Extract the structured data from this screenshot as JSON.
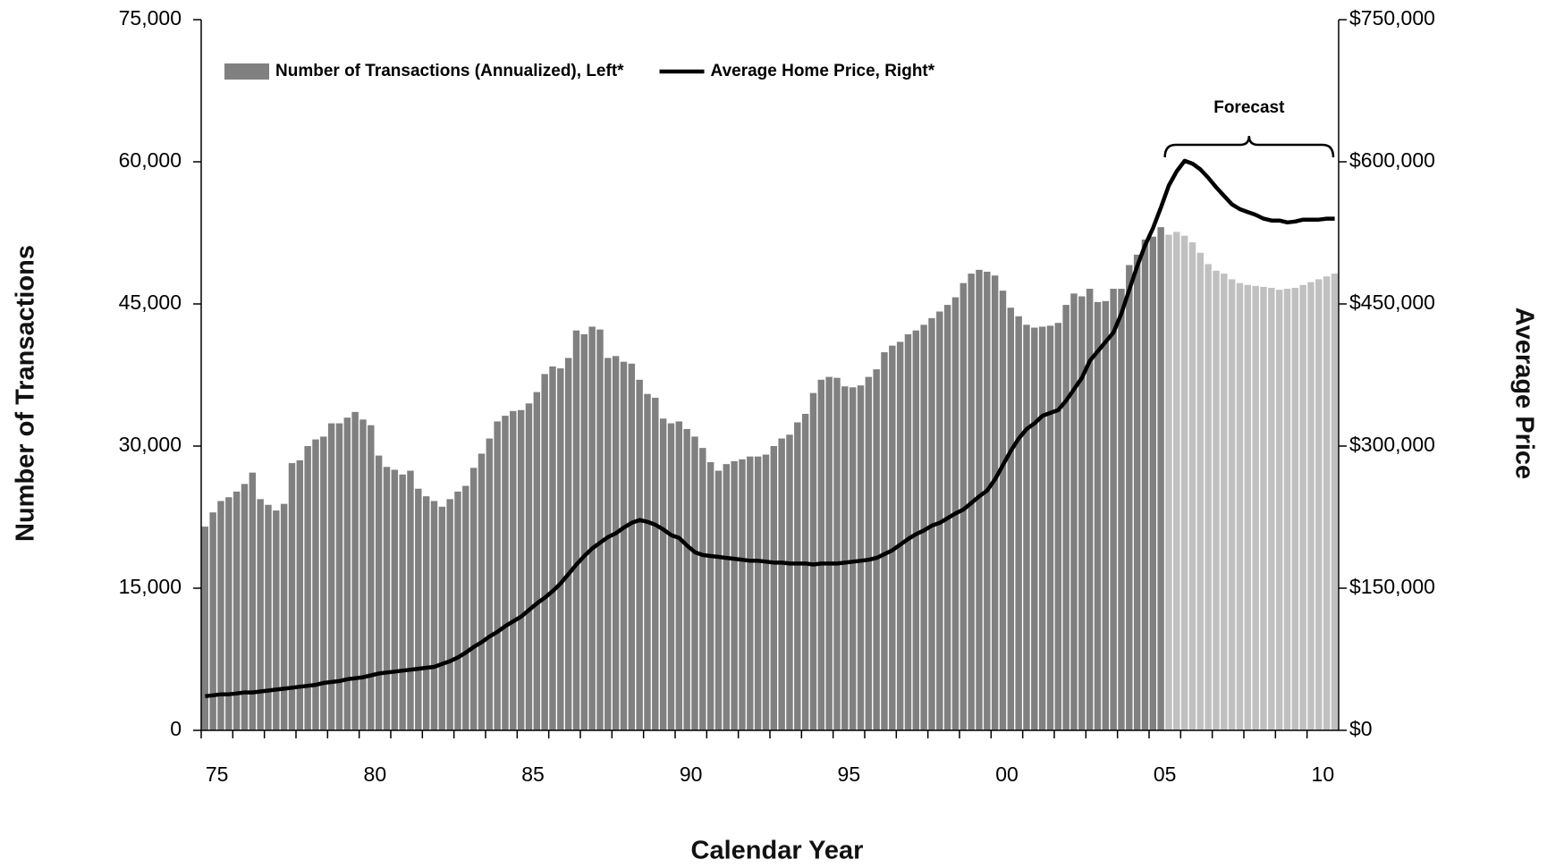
{
  "chart_data": {
    "type": "bar",
    "x_label": "Calendar Year",
    "y_label": "Number of Transactions",
    "y2_label": "Average Price",
    "legend": "upper left",
    "annotations": [
      {
        "text": "Forecast"
      }
    ],
    "categories": [
      null,
      "75",
      null,
      null,
      null,
      null,
      null,
      null,
      null,
      null,
      null,
      null,
      null,
      null,
      null,
      null,
      null,
      null,
      null,
      null,
      null,
      "80",
      null,
      null,
      null,
      null,
      null,
      null,
      null,
      null,
      null,
      null,
      null,
      null,
      null,
      null,
      null,
      null,
      null,
      null,
      null,
      "85",
      null,
      null,
      null,
      null,
      null,
      null,
      null,
      null,
      null,
      null,
      null,
      null,
      null,
      null,
      null,
      null,
      null,
      null,
      null,
      "90",
      null,
      null,
      null,
      null,
      null,
      null,
      null,
      null,
      null,
      null,
      null,
      null,
      null,
      null,
      null,
      null,
      null,
      null,
      null,
      "95",
      null,
      null,
      null,
      null,
      null,
      null,
      null,
      null,
      null,
      null,
      null,
      null,
      null,
      null,
      null,
      null,
      null,
      null,
      null,
      "00",
      null,
      null,
      null,
      null,
      null,
      null,
      null,
      null,
      null,
      null,
      null,
      null,
      null,
      null,
      null,
      null,
      null,
      null,
      null,
      "05",
      null,
      null,
      null,
      null,
      null,
      null,
      null,
      null,
      null,
      null,
      null,
      null,
      null,
      null,
      null,
      null,
      null,
      null,
      null,
      "10",
      null,
      null
    ],
    "ylim": [
      0,
      75000
    ],
    "yticks": [
      0,
      {
        "value": 15000,
        "label": "15,000"
      },
      {
        "value": 30000,
        "label": "30,000"
      },
      {
        "value": 45000,
        "label": "45,000"
      },
      {
        "value": 60000,
        "label": "60,000"
      },
      {
        "value": 75000,
        "label": "75,000"
      }
    ],
    "y2lim": [
      0,
      750000
    ],
    "y2ticks": [
      {
        "value": 0,
        "label": "$0"
      },
      {
        "value": 150000,
        "label": "$150,000"
      },
      {
        "value": 300000,
        "label": "$300,000"
      },
      {
        "value": 450000,
        "label": "$450,000"
      },
      {
        "value": 600000,
        "label": "$600,000"
      },
      {
        "value": 750000,
        "label": "$750,000"
      }
    ],
    "series": [
      {
        "name": "Number of Transactions (Annualized), Left*",
        "type": "bar",
        "color": "#808080",
        "colors": [
          "#808080",
          "#808080",
          "#808080",
          "#808080",
          "#808080",
          "#808080",
          "#808080",
          "#808080",
          "#808080",
          "#808080",
          "#808080",
          "#808080",
          "#808080",
          "#808080",
          "#808080",
          "#808080",
          "#808080",
          "#808080",
          "#808080",
          "#808080",
          "#808080",
          "#808080",
          "#808080",
          "#808080",
          "#808080",
          "#808080",
          "#808080",
          "#808080",
          "#808080",
          "#808080",
          "#808080",
          "#808080",
          "#808080",
          "#808080",
          "#808080",
          "#808080",
          "#808080",
          "#808080",
          "#808080",
          "#808080",
          "#808080",
          "#808080",
          "#808080",
          "#808080",
          "#808080",
          "#808080",
          "#808080",
          "#808080",
          "#808080",
          "#808080",
          "#808080",
          "#808080",
          "#808080",
          "#808080",
          "#808080",
          "#808080",
          "#808080",
          "#808080",
          "#808080",
          "#808080",
          "#808080",
          "#808080",
          "#808080",
          "#808080",
          "#808080",
          "#808080",
          "#808080",
          "#808080",
          "#808080",
          "#808080",
          "#808080",
          "#808080",
          "#808080",
          "#808080",
          "#808080",
          "#808080",
          "#808080",
          "#808080",
          "#808080",
          "#808080",
          "#808080",
          "#808080",
          "#808080",
          "#808080",
          "#808080",
          "#808080",
          "#808080",
          "#808080",
          "#808080",
          "#808080",
          "#808080",
          "#808080",
          "#808080",
          "#808080",
          "#808080",
          "#808080",
          "#808080",
          "#808080",
          "#808080",
          "#808080",
          "#808080",
          "#808080",
          "#808080",
          "#808080",
          "#808080",
          "#808080",
          "#808080",
          "#808080",
          "#808080",
          "#808080",
          "#808080",
          "#808080",
          "#808080",
          "#808080",
          "#808080",
          "#808080",
          "#808080",
          "#808080",
          "#808080",
          "#808080",
          "#808080",
          "#808080",
          "#c0c0c0",
          "#c0c0c0",
          "#c0c0c0",
          "#c0c0c0",
          "#c0c0c0",
          "#c0c0c0",
          "#c0c0c0",
          "#c0c0c0",
          "#c0c0c0",
          "#c0c0c0",
          "#c0c0c0",
          "#c0c0c0",
          "#c0c0c0",
          "#c0c0c0",
          "#c0c0c0",
          "#c0c0c0",
          "#c0c0c0",
          "#c0c0c0",
          "#c0c0c0",
          "#c0c0c0",
          "#c0c0c0",
          "#c0c0c0"
        ],
        "values": [
          21500,
          23000,
          24200,
          24600,
          25200,
          26000,
          27200,
          24400,
          23800,
          23200,
          23900,
          28200,
          28500,
          30000,
          30700,
          31000,
          32400,
          32400,
          33000,
          33600,
          32800,
          32200,
          29000,
          27800,
          27500,
          27000,
          27400,
          25500,
          24700,
          24200,
          23600,
          24400,
          25200,
          25800,
          27700,
          29200,
          30800,
          32600,
          33200,
          33700,
          33800,
          34500,
          35700,
          37600,
          38400,
          38200,
          39300,
          42200,
          41800,
          42600,
          42300,
          39300,
          39500,
          38900,
          38700,
          37000,
          35500,
          35100,
          32900,
          32400,
          32600,
          31800,
          31000,
          29800,
          28300,
          27400,
          28100,
          28400,
          28600,
          28900,
          28900,
          29100,
          30000,
          30800,
          31200,
          32500,
          33400,
          35600,
          37000,
          37300,
          37200,
          36300,
          36200,
          36400,
          37300,
          38100,
          39900,
          40600,
          41000,
          41800,
          42200,
          42800,
          43500,
          44200,
          44900,
          45700,
          47200,
          48200,
          48600,
          48400,
          48000,
          46400,
          44600,
          43700,
          42800,
          42500,
          42600,
          42700,
          43000,
          44900,
          46100,
          45800,
          46600,
          45200,
          45300,
          46600,
          46600,
          49100,
          50200,
          51800,
          52100,
          53100,
          52300,
          52600,
          52200,
          51500,
          50400,
          49200,
          48500,
          48200,
          47600,
          47200,
          47000,
          46900,
          46800,
          46700,
          46500,
          46600,
          46700,
          47000,
          47300,
          47600,
          47900,
          48200
        ]
      },
      {
        "name": "Average Home Price, Right*",
        "type": "line",
        "axis": "y2",
        "color": "#000000",
        "values": [
          36000,
          37000,
          38000,
          38000,
          39000,
          40000,
          40000,
          41000,
          42000,
          43000,
          44000,
          45000,
          46000,
          47000,
          48000,
          50000,
          51000,
          52000,
          54000,
          55000,
          56000,
          58000,
          60000,
          61000,
          62000,
          63000,
          64000,
          65000,
          66000,
          67000,
          70000,
          73000,
          77000,
          82000,
          88000,
          93000,
          99000,
          104000,
          110000,
          115000,
          120000,
          127000,
          134000,
          140000,
          147000,
          155000,
          165000,
          175000,
          184000,
          192000,
          198000,
          204000,
          208000,
          214000,
          219000,
          222000,
          220000,
          217000,
          212000,
          206000,
          203000,
          195000,
          188000,
          185000,
          184000,
          183000,
          182000,
          181000,
          180000,
          179000,
          179000,
          178000,
          177000,
          177000,
          176000,
          176000,
          176000,
          175000,
          176000,
          176000,
          176000,
          177000,
          178000,
          179000,
          180000,
          182000,
          186000,
          190000,
          196000,
          202000,
          207000,
          211000,
          216000,
          219000,
          224000,
          229000,
          233000,
          240000,
          247000,
          253000,
          265000,
          280000,
          295000,
          308000,
          318000,
          324000,
          332000,
          335000,
          338000,
          348000,
          360000,
          372000,
          390000,
          400000,
          410000,
          420000,
          440000,
          465000,
          490000,
          512000,
          530000,
          552000,
          575000,
          590000,
          601000,
          598000,
          592000,
          583000,
          573000,
          564000,
          555000,
          550000,
          547000,
          544000,
          540000,
          538000,
          538000,
          536000,
          537000,
          539000,
          539000,
          539000,
          540000,
          540000
        ]
      }
    ]
  }
}
